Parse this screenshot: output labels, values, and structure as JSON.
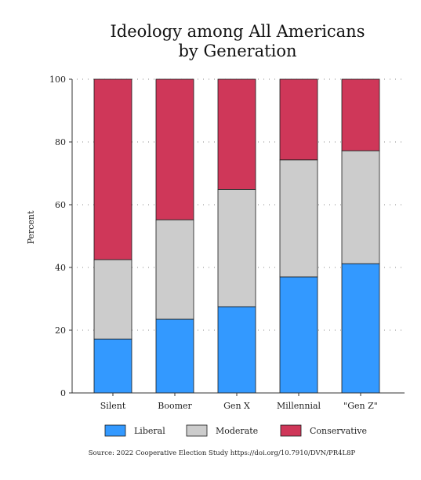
{
  "chart_data": {
    "type": "bar",
    "stacked": true,
    "title_lines": [
      "Ideology among All Americans",
      "by Generation"
    ],
    "xlabel": "",
    "ylabel": "Percent",
    "ylim": [
      0,
      100
    ],
    "yticks": [
      0,
      20,
      40,
      60,
      80,
      100
    ],
    "grid": "dotted horizontal",
    "legend_position": "bottom",
    "categories": [
      "Silent",
      "Boomer",
      "Gen X",
      "Millennial",
      "\"Gen Z\""
    ],
    "series": [
      {
        "name": "Liberal",
        "color": "#3399ff",
        "values": [
          17.2,
          23.5,
          27.5,
          37,
          41.2
        ]
      },
      {
        "name": "Moderate",
        "color": "#cccccc",
        "values": [
          25.3,
          31.7,
          37.4,
          37.3,
          36
        ]
      },
      {
        "name": "Conservative",
        "color": "#cf3759",
        "values": [
          57.5,
          44.8,
          35.1,
          25.7,
          22.8
        ]
      }
    ],
    "source": "Source: 2022 Cooperative Election Study https://doi.org/10.7910/DVN/PR4L8P"
  }
}
